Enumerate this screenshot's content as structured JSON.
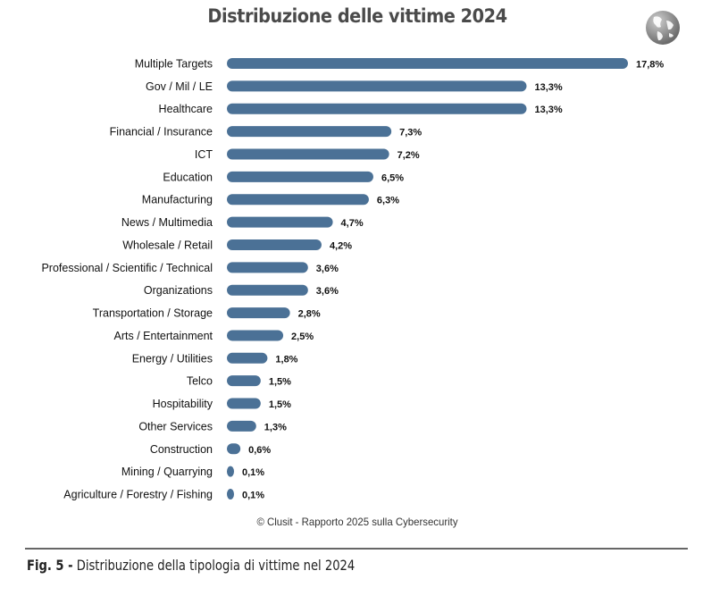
{
  "chart_data": {
    "type": "bar",
    "orientation": "horizontal",
    "title": "Distribuzione delle vittime 2024",
    "categories": [
      "Multiple Targets",
      "Gov / Mil / LE",
      "Healthcare",
      "Financial / Insurance",
      "ICT",
      "Education",
      "Manufacturing",
      "News / Multimedia",
      "Wholesale / Retail",
      "Professional / Scientific / Technical",
      "Organizations",
      "Transportation / Storage",
      "Arts / Entertainment",
      "Energy / Utilities",
      "Telco",
      "Hospitability",
      "Other Services",
      "Construction",
      "Mining / Quarrying",
      "Agriculture / Forestry / Fishing"
    ],
    "values": [
      17.8,
      13.3,
      13.3,
      7.3,
      7.2,
      6.5,
      6.3,
      4.7,
      4.2,
      3.6,
      3.6,
      2.8,
      2.5,
      1.8,
      1.5,
      1.5,
      1.3,
      0.6,
      0.1,
      0.1
    ],
    "data_labels": [
      "17,8%",
      "13,3%",
      "13,3%",
      "7,3%",
      "7,2%",
      "6,5%",
      "6,3%",
      "4,7%",
      "4,2%",
      "3,6%",
      "3,6%",
      "2,8%",
      "2,5%",
      "1,8%",
      "1,5%",
      "1,5%",
      "1,3%",
      "0,6%",
      "0,1%",
      "0,1%"
    ],
    "unit": "%",
    "bar_color": "#4b7196",
    "grid": false,
    "legend": "none"
  },
  "source": "© Clusit - Rapporto 2025 sulla Cybersecurity",
  "caption": {
    "label": "Fig. 5 -",
    "text": " Distribuzione della tipologia di vittime nel 2024"
  },
  "icon": "globe-icon"
}
